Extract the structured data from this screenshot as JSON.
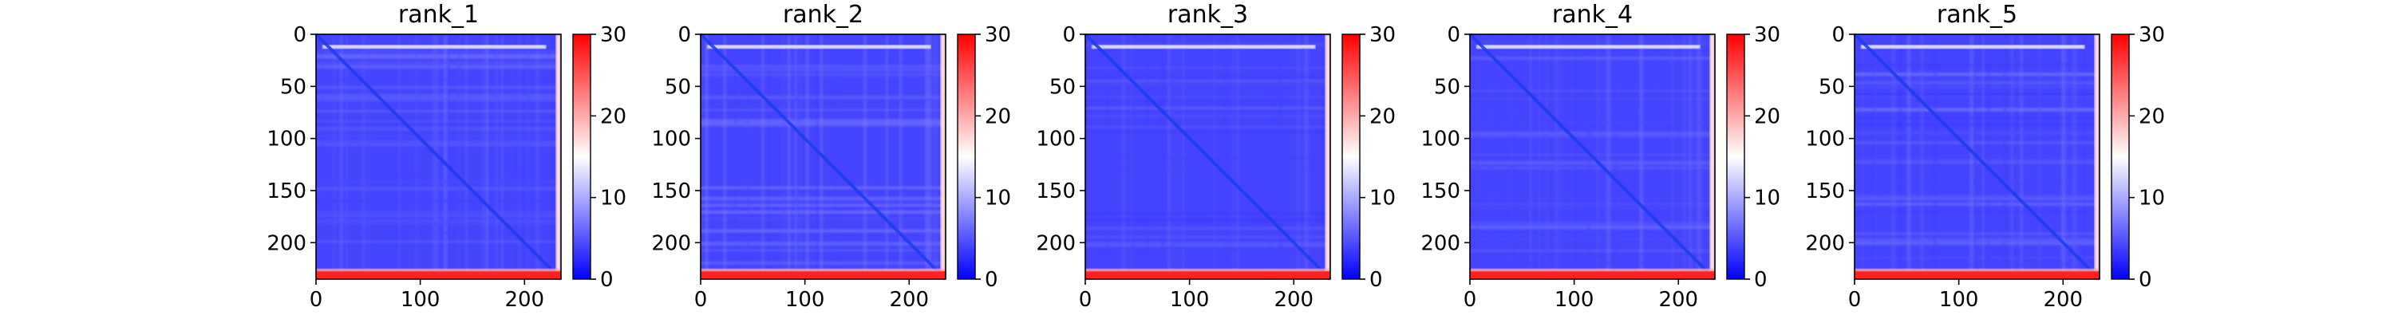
{
  "colors": {
    "low": "#0000ff",
    "mid": "#ffffff",
    "high": "#ff0000",
    "diagonal": "#1e3cf0",
    "axis": "#000000"
  },
  "chart_data": [
    {
      "type": "heatmap",
      "title": "rank_1",
      "xlabel": "",
      "ylabel": "",
      "xlim": [
        0,
        235
      ],
      "ylim": [
        235,
        0
      ],
      "x_ticks": [
        0,
        100,
        200
      ],
      "y_ticks": [
        0,
        50,
        100,
        150,
        200
      ],
      "colorbar": {
        "range": [
          0,
          30
        ],
        "ticks": [
          0,
          10,
          20,
          30
        ],
        "colormap": "bwr"
      },
      "matrix_description": "Predicted aligned error map, mostly low values (~3-6) with a dark-blue diagonal; the top rows around 10-15 near white, the bottom rows around 228-235 and the last column high (~25-30, red)."
    },
    {
      "type": "heatmap",
      "title": "rank_2",
      "xlabel": "",
      "ylabel": "",
      "xlim": [
        0,
        235
      ],
      "ylim": [
        235,
        0
      ],
      "x_ticks": [
        0,
        100,
        200
      ],
      "y_ticks": [
        0,
        50,
        100,
        150,
        200
      ],
      "colorbar": {
        "range": [
          0,
          30
        ],
        "ticks": [
          0,
          10,
          20,
          30
        ],
        "colormap": "bwr"
      },
      "matrix_description": "Same pattern as rank_1."
    },
    {
      "type": "heatmap",
      "title": "rank_3",
      "xlabel": "",
      "ylabel": "",
      "xlim": [
        0,
        235
      ],
      "ylim": [
        235,
        0
      ],
      "x_ticks": [
        0,
        100,
        200
      ],
      "y_ticks": [
        0,
        50,
        100,
        150,
        200
      ],
      "colorbar": {
        "range": [
          0,
          30
        ],
        "ticks": [
          0,
          10,
          20,
          30
        ],
        "colormap": "bwr"
      },
      "matrix_description": "Same pattern as rank_1."
    },
    {
      "type": "heatmap",
      "title": "rank_4",
      "xlabel": "",
      "ylabel": "",
      "xlim": [
        0,
        235
      ],
      "ylim": [
        235,
        0
      ],
      "x_ticks": [
        0,
        100,
        200
      ],
      "y_ticks": [
        0,
        50,
        100,
        150,
        200
      ],
      "colorbar": {
        "range": [
          0,
          30
        ],
        "ticks": [
          0,
          10,
          20,
          30
        ],
        "colormap": "bwr"
      },
      "matrix_description": "Same pattern as rank_1."
    },
    {
      "type": "heatmap",
      "title": "rank_5",
      "xlabel": "",
      "ylabel": "",
      "xlim": [
        0,
        235
      ],
      "ylim": [
        235,
        0
      ],
      "x_ticks": [
        0,
        100,
        200
      ],
      "y_ticks": [
        0,
        50,
        100,
        150,
        200
      ],
      "colorbar": {
        "range": [
          0,
          30
        ],
        "ticks": [
          0,
          10,
          20,
          30
        ],
        "colormap": "bwr"
      },
      "matrix_description": "Same pattern as rank_1."
    }
  ]
}
